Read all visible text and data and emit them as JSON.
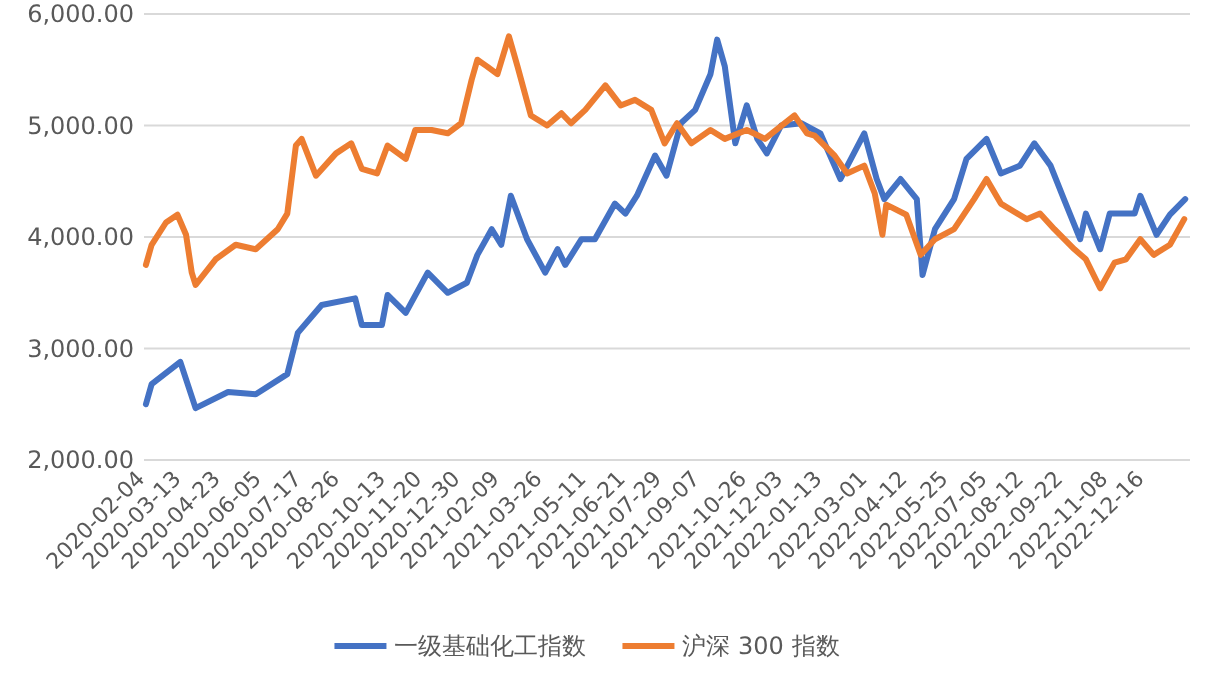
{
  "chart_data": {
    "type": "line",
    "xlim": [
      "2020-02-02",
      "2023-02-01"
    ],
    "xticks": [
      "2020-02-04",
      "2020-03-13",
      "2020-04-23",
      "2020-06-05",
      "2020-07-17",
      "2020-08-26",
      "2020-10-13",
      "2020-11-20",
      "2020-12-30",
      "2021-02-09",
      "2021-03-26",
      "2021-05-11",
      "2021-06-21",
      "2021-07-29",
      "2021-09-07",
      "2021-10-26",
      "2021-12-03",
      "2022-01-13",
      "2022-03-01",
      "2022-04-12",
      "2022-05-25",
      "2022-07-05",
      "2022-08-12",
      "2022-09-22",
      "2022-11-08",
      "2022-12-16"
    ],
    "ylim": [
      2000,
      6000
    ],
    "yticks": [
      {
        "value": 2000,
        "label": "2,000.00"
      },
      {
        "value": 3000,
        "label": "3,000.00"
      },
      {
        "value": 4000,
        "label": "4,000.00"
      },
      {
        "value": 5000,
        "label": "5,000.00"
      },
      {
        "value": 6000,
        "label": "6,000.00"
      }
    ],
    "grid": "y",
    "legend": "bottom",
    "series": [
      {
        "name": "一级基础化工指数",
        "color": "#4472c4",
        "x": [
          "2020-02-04",
          "2020-02-10",
          "2020-03-11",
          "2020-03-27",
          "2020-04-30",
          "2020-05-29",
          "2020-07-01",
          "2020-07-12",
          "2020-08-06",
          "2020-09-10",
          "2020-09-17",
          "2020-10-08",
          "2020-10-14",
          "2020-11-02",
          "2020-11-25",
          "2020-12-16",
          "2021-01-05",
          "2021-01-16",
          "2021-01-31",
          "2021-02-10",
          "2021-02-20",
          "2021-03-09",
          "2021-03-28",
          "2021-04-10",
          "2021-04-18",
          "2021-05-05",
          "2021-05-19",
          "2021-06-09",
          "2021-06-20",
          "2021-07-02",
          "2021-07-21",
          "2021-08-02",
          "2021-08-17",
          "2021-09-01",
          "2021-09-17",
          "2021-09-24",
          "2021-10-02",
          "2021-10-13",
          "2021-10-25",
          "2021-11-05",
          "2021-11-15",
          "2021-11-30",
          "2021-12-21",
          "2022-01-10",
          "2022-01-31",
          "2022-02-25",
          "2022-03-10",
          "2022-03-18",
          "2022-04-04",
          "2022-04-21",
          "2022-04-27",
          "2022-05-10",
          "2022-05-30",
          "2022-06-12",
          "2022-07-03",
          "2022-07-18",
          "2022-08-07",
          "2022-08-22",
          "2022-09-08",
          "2022-09-22",
          "2022-10-09",
          "2022-10-15",
          "2022-10-30",
          "2022-11-09",
          "2022-12-05",
          "2022-12-11",
          "2022-12-28",
          "2023-01-11",
          "2023-01-27"
        ],
        "values": [
          2500,
          2680,
          2880,
          2465,
          2610,
          2590,
          2770,
          3140,
          3390,
          3450,
          3210,
          3210,
          3480,
          3320,
          3680,
          3500,
          3590,
          3840,
          4070,
          3930,
          4370,
          3980,
          3680,
          3890,
          3750,
          3980,
          3980,
          4300,
          4210,
          4370,
          4730,
          4550,
          5020,
          5140,
          5460,
          5770,
          5530,
          4840,
          5180,
          4880,
          4750,
          5000,
          5020,
          4930,
          4520,
          4930,
          4520,
          4340,
          4520,
          4340,
          3660,
          4070,
          4340,
          4700,
          4880,
          4570,
          4640,
          4840,
          4640,
          4340,
          3980,
          4210,
          3890,
          4210,
          4210,
          4370,
          4020,
          4200,
          4340
        ]
      },
      {
        "name": "沪深 300 指数",
        "color": "#ed7d31",
        "x": [
          "2020-02-04",
          "2020-02-10",
          "2020-02-25",
          "2020-03-08",
          "2020-03-17",
          "2020-03-23",
          "2020-03-27",
          "2020-04-17",
          "2020-05-08",
          "2020-05-29",
          "2020-06-21",
          "2020-07-01",
          "2020-07-10",
          "2020-07-16",
          "2020-07-31",
          "2020-08-21",
          "2020-09-06",
          "2020-09-17",
          "2020-10-03",
          "2020-10-14",
          "2020-11-02",
          "2020-11-12",
          "2020-11-29",
          "2020-12-16",
          "2020-12-30",
          "2021-01-10",
          "2021-01-16",
          "2021-01-26",
          "2021-02-06",
          "2021-02-18",
          "2021-02-27",
          "2021-03-13",
          "2021-03-30",
          "2021-04-14",
          "2021-04-24",
          "2021-05-09",
          "2021-05-30",
          "2021-06-15",
          "2021-06-30",
          "2021-07-17",
          "2021-07-31",
          "2021-08-13",
          "2021-08-28",
          "2021-09-17",
          "2021-10-02",
          "2021-10-25",
          "2021-11-13",
          "2021-12-14",
          "2021-12-27",
          "2022-01-04",
          "2022-01-25",
          "2022-02-07",
          "2022-02-25",
          "2022-03-08",
          "2022-03-16",
          "2022-03-20",
          "2022-04-10",
          "2022-04-25",
          "2022-05-10",
          "2022-05-30",
          "2022-06-20",
          "2022-07-03",
          "2022-07-18",
          "2022-08-14",
          "2022-08-28",
          "2022-09-12",
          "2022-10-03",
          "2022-10-15",
          "2022-10-30",
          "2022-11-14",
          "2022-11-26",
          "2022-12-11",
          "2022-12-25",
          "2023-01-11",
          "2023-01-26"
        ],
        "values": [
          3750,
          3930,
          4130,
          4200,
          4020,
          3680,
          3570,
          3800,
          3930,
          3890,
          4070,
          4210,
          4820,
          4880,
          4550,
          4750,
          4840,
          4610,
          4570,
          4820,
          4700,
          4960,
          4960,
          4930,
          5020,
          5410,
          5590,
          5530,
          5460,
          5800,
          5530,
          5090,
          5000,
          5110,
          5020,
          5140,
          5360,
          5180,
          5230,
          5140,
          4840,
          5020,
          4840,
          4960,
          4880,
          4960,
          4880,
          5090,
          4930,
          4910,
          4730,
          4570,
          4640,
          4390,
          4020,
          4290,
          4200,
          3840,
          3980,
          4070,
          4340,
          4520,
          4300,
          4160,
          4210,
          4070,
          3890,
          3800,
          3540,
          3770,
          3800,
          3980,
          3840,
          3930,
          4160
        ]
      }
    ]
  }
}
